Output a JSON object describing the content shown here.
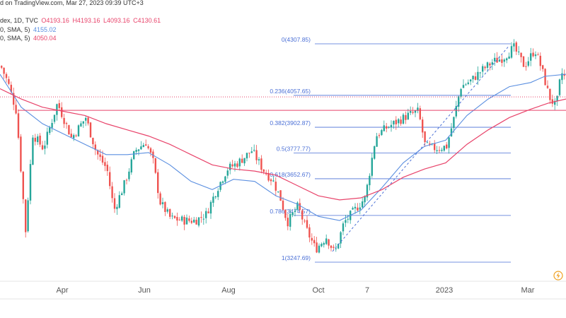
{
  "header": {
    "line1": "d on TradingView.com, Mar 27, 2023 09:39 UTC+3",
    "line2_name": "dex, 1D, TVC",
    "line2_o": "O4193.16",
    "line2_h": "H4193.16",
    "line2_l": "L4093.16",
    "line2_c": "C4130.61",
    "ma1_label": "0, SMA, 5)",
    "ma1_value": "4155.02",
    "ma2_label": "0, SMA, 5)",
    "ma2_value": "4050.04"
  },
  "colors": {
    "up": "#26a69a",
    "down": "#ef5350",
    "ma1": "#5b8fe0",
    "ma2": "#e8436a",
    "fib": "#4a6fd6",
    "fib_label": "#4a6fd6",
    "grid": "#dddddd",
    "hline": "#e8436a"
  },
  "chart_data": {
    "type": "candlestick",
    "title": "",
    "xlabel": "",
    "ylabel": "",
    "x_ticks": [
      "Apr",
      "Jun",
      "Aug",
      "Oct",
      "7",
      "2023",
      "Mar"
    ],
    "fib_levels": [
      {
        "label": "0(4307.85)",
        "ratio": 0,
        "price": 4307.85
      },
      {
        "label": "0.236(4057.65)",
        "ratio": 0.236,
        "price": 4057.65
      },
      {
        "label": "0.382(3902.87)",
        "ratio": 0.382,
        "price": 3902.87
      },
      {
        "label": "0.5(3777.77)",
        "ratio": 0.5,
        "price": 3777.77
      },
      {
        "label": "0.618(3652.67)",
        "ratio": 0.618,
        "price": 3652.67
      },
      {
        "label": "0.786(3474.57)",
        "ratio": 0.786,
        "price": 3474.57
      },
      {
        "label": "1(3247.69)",
        "ratio": 1,
        "price": 3247.69
      }
    ],
    "horizontal_line": 3985,
    "dotted_line": 4050,
    "close_path": [
      [
        0,
        4200
      ],
      [
        10,
        4120
      ],
      [
        22,
        3980
      ],
      [
        35,
        3400
      ],
      [
        45,
        3870
      ],
      [
        60,
        3800
      ],
      [
        80,
        4020
      ],
      [
        100,
        3850
      ],
      [
        120,
        3950
      ],
      [
        135,
        3780
      ],
      [
        150,
        3700
      ],
      [
        160,
        3500
      ],
      [
        175,
        3630
      ],
      [
        190,
        3790
      ],
      [
        205,
        3830
      ],
      [
        215,
        3740
      ],
      [
        225,
        3540
      ],
      [
        240,
        3460
      ],
      [
        260,
        3450
      ],
      [
        275,
        3450
      ],
      [
        290,
        3480
      ],
      [
        305,
        3600
      ],
      [
        320,
        3700
      ],
      [
        335,
        3730
      ],
      [
        355,
        3790
      ],
      [
        370,
        3700
      ],
      [
        385,
        3640
      ],
      [
        395,
        3560
      ],
      [
        405,
        3440
      ],
      [
        420,
        3520
      ],
      [
        430,
        3420
      ],
      [
        445,
        3310
      ],
      [
        460,
        3370
      ],
      [
        472,
        3290
      ],
      [
        485,
        3440
      ],
      [
        500,
        3500
      ],
      [
        515,
        3560
      ],
      [
        530,
        3860
      ],
      [
        545,
        3900
      ],
      [
        560,
        3930
      ],
      [
        575,
        3960
      ],
      [
        590,
        3980
      ],
      [
        600,
        3810
      ],
      [
        615,
        3800
      ],
      [
        630,
        3810
      ],
      [
        640,
        3940
      ],
      [
        650,
        4100
      ],
      [
        665,
        4130
      ],
      [
        680,
        4180
      ],
      [
        695,
        4220
      ],
      [
        710,
        4240
      ],
      [
        725,
        4290
      ],
      [
        740,
        4200
      ],
      [
        755,
        4280
      ],
      [
        765,
        4180
      ],
      [
        775,
        4050
      ],
      [
        785,
        4000
      ],
      [
        792,
        4170
      ],
      [
        800,
        4130
      ]
    ],
    "ma1_path": [
      [
        0,
        4160
      ],
      [
        30,
        4000
      ],
      [
        60,
        3920
      ],
      [
        90,
        3870
      ],
      [
        120,
        3820
      ],
      [
        150,
        3770
      ],
      [
        180,
        3770
      ],
      [
        210,
        3780
      ],
      [
        240,
        3720
      ],
      [
        270,
        3640
      ],
      [
        300,
        3600
      ],
      [
        330,
        3650
      ],
      [
        360,
        3640
      ],
      [
        390,
        3570
      ],
      [
        420,
        3530
      ],
      [
        450,
        3470
      ],
      [
        480,
        3450
      ],
      [
        510,
        3500
      ],
      [
        540,
        3610
      ],
      [
        570,
        3730
      ],
      [
        600,
        3810
      ],
      [
        630,
        3840
      ],
      [
        660,
        3960
      ],
      [
        690,
        4040
      ],
      [
        720,
        4100
      ],
      [
        750,
        4120
      ],
      [
        770,
        4150
      ],
      [
        800,
        4160
      ]
    ],
    "ma2_path": [
      [
        0,
        4090
      ],
      [
        30,
        4040
      ],
      [
        60,
        4000
      ],
      [
        90,
        3980
      ],
      [
        120,
        3960
      ],
      [
        150,
        3920
      ],
      [
        180,
        3890
      ],
      [
        210,
        3860
      ],
      [
        240,
        3820
      ],
      [
        270,
        3770
      ],
      [
        300,
        3720
      ],
      [
        330,
        3700
      ],
      [
        360,
        3690
      ],
      [
        390,
        3670
      ],
      [
        420,
        3620
      ],
      [
        450,
        3570
      ],
      [
        480,
        3550
      ],
      [
        510,
        3560
      ],
      [
        540,
        3600
      ],
      [
        570,
        3660
      ],
      [
        600,
        3700
      ],
      [
        630,
        3730
      ],
      [
        660,
        3820
      ],
      [
        690,
        3890
      ],
      [
        720,
        3950
      ],
      [
        750,
        3990
      ],
      [
        775,
        4020
      ],
      [
        800,
        4040
      ]
    ],
    "trend_dashed": [
      [
        470,
        3300
      ],
      [
        720,
        4300
      ]
    ],
    "ylim": [
      3150,
      4400
    ]
  }
}
